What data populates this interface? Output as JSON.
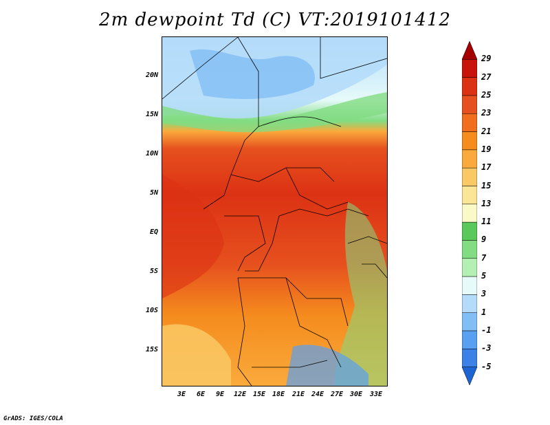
{
  "title": "2m dewpoint Td (C) VT:2019101412",
  "footer": "GrADS: IGES/COLA",
  "y_axis_labels": [
    "20N",
    "15N",
    "10N",
    "5N",
    "EQ",
    "5S",
    "10S",
    "15S"
  ],
  "x_axis_labels": [
    "3E",
    "6E",
    "9E",
    "12E",
    "15E",
    "18E",
    "21E",
    "24E",
    "27E",
    "30E",
    "33E"
  ],
  "colorbar": {
    "labels": [
      "29",
      "27",
      "25",
      "23",
      "21",
      "19",
      "17",
      "15",
      "13",
      "11",
      "9",
      "7",
      "5",
      "3",
      "1",
      "-1",
      "-3",
      "-5"
    ],
    "colors": [
      "#a50000",
      "#c8140a",
      "#dc3214",
      "#e6501e",
      "#f06e1e",
      "#f58c1e",
      "#faaa3c",
      "#fac864",
      "#fae696",
      "#fafac8",
      "#5ac85a",
      "#82dc82",
      "#b4f0b4",
      "#e6fafa",
      "#b4dcfa",
      "#82bef5",
      "#5aa0f0",
      "#3c82e6",
      "#1e64d2"
    ]
  }
}
